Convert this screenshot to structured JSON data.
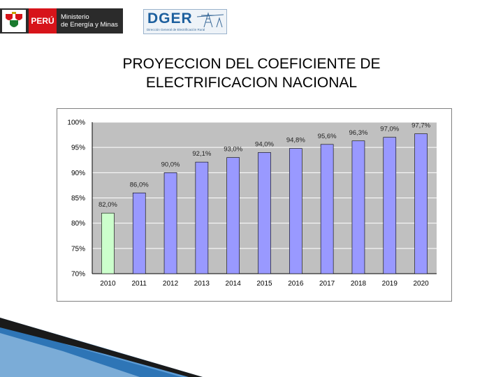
{
  "header": {
    "peru_label": "PERÚ",
    "ministry_line1": "Ministerio",
    "ministry_line2": "de Energía y Minas",
    "dger_title": "DGER",
    "dger_subtitle": "Dirección General de Electrificación Rural"
  },
  "chart_data": {
    "type": "bar",
    "title_line1": "PROYECCION DEL COEFICIENTE DE",
    "title_line2": "ELECTRIFICACION NACIONAL",
    "xlabel": "",
    "ylabel": "",
    "ylim": [
      70,
      100
    ],
    "yticks": [
      "100%",
      "95%",
      "90%",
      "85%",
      "80%",
      "75%",
      "70%"
    ],
    "ytick_values": [
      100,
      95,
      90,
      85,
      80,
      75,
      70
    ],
    "categories": [
      "2010",
      "2011",
      "2012",
      "2013",
      "2014",
      "2015",
      "2016",
      "2017",
      "2018",
      "2019",
      "2020"
    ],
    "values": [
      82.0,
      86.0,
      90.0,
      92.1,
      93.0,
      94.0,
      94.8,
      95.6,
      96.3,
      97.0,
      97.7
    ],
    "labels": [
      "82,0%",
      "86,0%",
      "90,0%",
      "92,1%",
      "93,0%",
      "94,0%",
      "94,8%",
      "95,6%",
      "96,3%",
      "97,0%",
      "97,7%"
    ],
    "colors": {
      "first": "#ccffcc",
      "others": "#9999ff",
      "plot_bg": "#c0c0c0",
      "grid": "#ffffff"
    }
  }
}
